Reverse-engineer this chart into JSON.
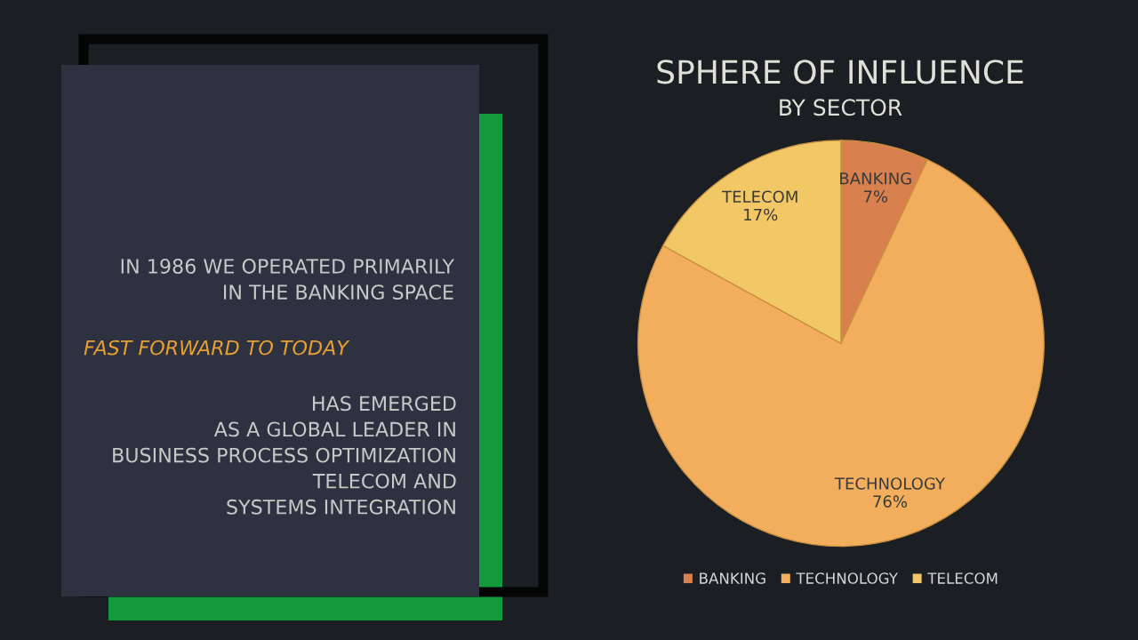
{
  "chart_data": {
    "type": "pie",
    "title": "SPHERE OF INFLUENCE",
    "subtitle": "BY SECTOR",
    "categories": [
      "BANKING",
      "TECHNOLOGY",
      "TELECOM"
    ],
    "values": [
      7,
      76,
      17
    ],
    "colors": [
      "#d9804f",
      "#f2ae5c",
      "#f2c766"
    ],
    "value_labels": [
      "7%",
      "76%",
      "17%"
    ],
    "legend": "bottom",
    "annotations": [
      "IN 1986 WE OPERATED PRIMARILY\nIN THE BANKING SPACE",
      "FAST FORWARD TO TODAY",
      "HAS EMERGED\nAS A GLOBAL LEADER IN\nBUSINESS PROCESS OPTIMIZATION\nTELECOM AND\nSYSTEMS INTEGRATION"
    ]
  }
}
